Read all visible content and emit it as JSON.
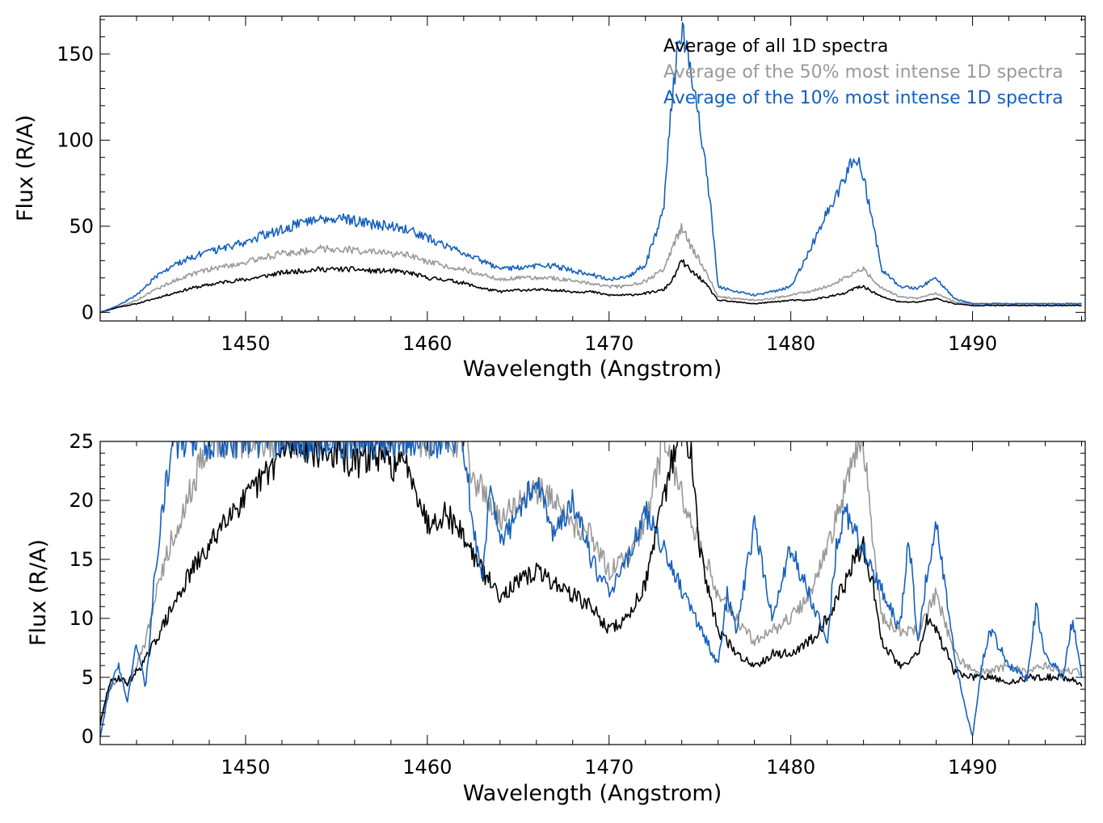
{
  "colors": {
    "all": "#000000",
    "fifty": "#999999",
    "ten": "#1560bd",
    "axis": "#000000"
  },
  "chart_data": [
    {
      "type": "line",
      "xlabel": "Wavelength (Angstrom)",
      "ylabel": "Flux (R/A)",
      "xlim": [
        1442.0,
        1496.2
      ],
      "ylim": [
        -5,
        172
      ],
      "xticks": [
        1450,
        1460,
        1470,
        1480,
        1490
      ],
      "xtick_labels": [
        "1450",
        "1460",
        "1470",
        "1480",
        "1490"
      ],
      "yticks": [
        0,
        50,
        100,
        150
      ],
      "ytick_labels": [
        "0",
        "50",
        "100",
        "150"
      ],
      "grid": false,
      "legend_position": "top-right",
      "legend": [
        "Average of all 1D spectra",
        "Average of the 50% most intense 1D spectra",
        "Average of the 10% most intense 1D spectra"
      ],
      "series": [
        {
          "name": "Average of all 1D spectra",
          "color_key": "all",
          "x": [
            1442.0,
            1443.0,
            1444.0,
            1445.0,
            1446.0,
            1447.0,
            1448.0,
            1449.0,
            1450.0,
            1451.0,
            1452.0,
            1453.0,
            1454.0,
            1455.0,
            1456.0,
            1457.0,
            1458.0,
            1459.0,
            1460.0,
            1461.0,
            1462.0,
            1463.0,
            1464.0,
            1465.0,
            1466.0,
            1467.0,
            1468.0,
            1469.0,
            1470.0,
            1471.0,
            1472.0,
            1473.0,
            1473.5,
            1474.0,
            1474.5,
            1475.0,
            1475.5,
            1476.0,
            1477.0,
            1478.0,
            1479.0,
            1480.0,
            1481.0,
            1482.0,
            1483.0,
            1483.5,
            1484.0,
            1485.0,
            1486.0,
            1487.0,
            1488.0,
            1489.0,
            1490.0,
            1491.0,
            1492.0,
            1493.0,
            1494.0,
            1495.0,
            1496.0
          ],
          "y": [
            0,
            3,
            5,
            8,
            11,
            14,
            16,
            18,
            19,
            21,
            23,
            24,
            25,
            25,
            25,
            24,
            24,
            23,
            20,
            19,
            17,
            14,
            12,
            13,
            13,
            13,
            12,
            12,
            10,
            10,
            11,
            13,
            19,
            30,
            24,
            20,
            14,
            7,
            6,
            5,
            6,
            7,
            7,
            9,
            11,
            14,
            15,
            9,
            6,
            6,
            8,
            5,
            4,
            4,
            4,
            4,
            4,
            4,
            4
          ]
        },
        {
          "name": "Average of the 50% most intense 1D spectra",
          "color_key": "fifty",
          "x": [
            1442.0,
            1443.0,
            1444.0,
            1445.0,
            1446.0,
            1447.0,
            1448.0,
            1449.0,
            1450.0,
            1451.0,
            1452.0,
            1453.0,
            1454.0,
            1455.0,
            1456.0,
            1457.0,
            1458.0,
            1459.0,
            1460.0,
            1461.0,
            1462.0,
            1463.0,
            1464.0,
            1465.0,
            1466.0,
            1467.0,
            1468.0,
            1469.0,
            1470.0,
            1471.0,
            1472.0,
            1473.0,
            1473.5,
            1474.0,
            1474.5,
            1475.0,
            1475.5,
            1476.0,
            1477.0,
            1478.0,
            1479.0,
            1480.0,
            1481.0,
            1482.0,
            1483.0,
            1483.5,
            1484.0,
            1485.0,
            1486.0,
            1487.0,
            1488.0,
            1489.0,
            1490.0,
            1491.0,
            1492.0,
            1493.0,
            1494.0,
            1495.0,
            1496.0
          ],
          "y": [
            0,
            3,
            7,
            13,
            18,
            22,
            25,
            27,
            29,
            32,
            34,
            35,
            37,
            37,
            36,
            35,
            34,
            33,
            29,
            27,
            25,
            22,
            19,
            20,
            20,
            20,
            18,
            17,
            15,
            15,
            18,
            25,
            38,
            50,
            38,
            30,
            20,
            9,
            8,
            7,
            8,
            10,
            12,
            15,
            20,
            23,
            25,
            14,
            9,
            8,
            11,
            6,
            5,
            5,
            5,
            5,
            5,
            5,
            5
          ]
        },
        {
          "name": "Average of the 10% most intense 1D spectra",
          "color_key": "ten",
          "x": [
            1442.0,
            1443.0,
            1444.0,
            1445.0,
            1446.0,
            1447.0,
            1448.0,
            1449.0,
            1450.0,
            1451.0,
            1452.0,
            1453.0,
            1454.0,
            1455.0,
            1456.0,
            1457.0,
            1458.0,
            1459.0,
            1460.0,
            1461.0,
            1462.0,
            1463.0,
            1464.0,
            1465.0,
            1466.0,
            1467.0,
            1468.0,
            1469.0,
            1470.0,
            1471.0,
            1472.0,
            1473.0,
            1473.5,
            1474.0,
            1474.5,
            1475.0,
            1475.5,
            1476.0,
            1477.0,
            1478.0,
            1479.0,
            1480.0,
            1481.0,
            1482.0,
            1483.0,
            1483.5,
            1484.0,
            1485.0,
            1486.0,
            1487.0,
            1488.0,
            1489.0,
            1490.0,
            1491.0,
            1492.0,
            1493.0,
            1494.0,
            1495.0,
            1496.0
          ],
          "y": [
            0,
            4,
            10,
            20,
            27,
            32,
            35,
            38,
            41,
            45,
            48,
            52,
            55,
            55,
            53,
            51,
            50,
            48,
            43,
            39,
            35,
            30,
            25,
            26,
            27,
            27,
            24,
            22,
            19,
            20,
            28,
            58,
            130,
            168,
            140,
            110,
            70,
            15,
            12,
            10,
            12,
            15,
            35,
            58,
            78,
            90,
            80,
            25,
            15,
            14,
            20,
            8,
            5,
            5,
            5,
            5,
            5,
            5,
            5
          ]
        }
      ]
    },
    {
      "type": "line",
      "xlabel": "Wavelength (Angstrom)",
      "ylabel": "Flux (R/A)",
      "xlim": [
        1442.0,
        1496.2
      ],
      "ylim": [
        -0.7,
        25
      ],
      "xticks": [
        1450,
        1460,
        1470,
        1480,
        1490
      ],
      "xtick_labels": [
        "1450",
        "1460",
        "1470",
        "1480",
        "1490"
      ],
      "yticks": [
        0,
        5,
        10,
        15,
        20,
        25
      ],
      "ytick_labels": [
        "0",
        "5",
        "10",
        "15",
        "20",
        "25"
      ],
      "grid": false,
      "series": [
        {
          "name": "Average of all 1D spectra",
          "color_key": "all",
          "x": [
            1442.0,
            1442.5,
            1443.0,
            1443.5,
            1444.0,
            1444.5,
            1445.0,
            1446.0,
            1447.0,
            1448.0,
            1449.0,
            1450.0,
            1451.0,
            1452.0,
            1453.0,
            1454.0,
            1455.0,
            1456.0,
            1457.0,
            1458.0,
            1459.0,
            1460.0,
            1461.0,
            1462.0,
            1463.0,
            1464.0,
            1465.0,
            1466.0,
            1467.0,
            1468.0,
            1469.0,
            1470.0,
            1471.0,
            1472.0,
            1473.0,
            1473.7,
            1474.5,
            1475.0,
            1475.5,
            1476.0,
            1477.0,
            1478.0,
            1479.0,
            1480.0,
            1481.0,
            1482.0,
            1483.0,
            1483.5,
            1484.0,
            1484.5,
            1485.0,
            1486.0,
            1487.0,
            1487.5,
            1488.0,
            1489.0,
            1490.0,
            1491.0,
            1492.0,
            1493.0,
            1494.0,
            1495.0,
            1496.0
          ],
          "y": [
            1,
            4.5,
            5,
            4.5,
            5.5,
            6.5,
            8,
            11,
            14,
            16,
            19,
            20,
            22,
            24,
            25,
            24,
            24,
            23,
            24,
            23,
            23,
            18,
            19,
            17,
            14,
            12,
            13,
            14,
            13,
            12,
            11,
            9,
            10,
            13,
            20,
            25,
            25,
            16,
            12,
            9,
            7,
            6,
            7,
            7,
            8,
            10,
            13,
            15,
            16,
            13,
            8,
            6,
            7,
            10,
            9,
            5.5,
            5,
            5,
            4.5,
            5,
            5,
            5,
            4.5
          ]
        },
        {
          "name": "Average of the 50% most intense 1D spectra",
          "color_key": "fifty",
          "x": [
            1442.0,
            1442.5,
            1443.0,
            1443.5,
            1444.0,
            1444.5,
            1445.0,
            1446.0,
            1447.0,
            1448.0,
            1449.0,
            1450.0,
            1451.0,
            1452.0,
            1462.0,
            1462.5,
            1463.0,
            1464.0,
            1465.0,
            1466.0,
            1467.0,
            1468.0,
            1469.0,
            1470.0,
            1471.0,
            1472.0,
            1473.0,
            1476.0,
            1477.0,
            1478.0,
            1479.0,
            1480.0,
            1481.0,
            1482.0,
            1483.0,
            1483.5,
            1484.0,
            1484.5,
            1485.0,
            1486.0,
            1487.0,
            1488.0,
            1489.0,
            1490.0,
            1491.0,
            1492.0,
            1493.0,
            1494.0,
            1495.0,
            1496.0
          ],
          "y": [
            1,
            4,
            5,
            4.5,
            6,
            8,
            12,
            17,
            21,
            25,
            25,
            25,
            25,
            25,
            25,
            22,
            21,
            18,
            20,
            21,
            20,
            18,
            17,
            14,
            15,
            18,
            25,
            12,
            10,
            8,
            9,
            10,
            12,
            16,
            21,
            24,
            25,
            17,
            10,
            9,
            9,
            12,
            7,
            5.5,
            5.5,
            6,
            5.5,
            6,
            5.5,
            5.5
          ]
        },
        {
          "name": "Average of the 10% most intense 1D spectra",
          "color_key": "ten",
          "x": [
            1442.0,
            1442.5,
            1443.0,
            1443.5,
            1444.0,
            1444.5,
            1445.0,
            1445.5,
            1446.0,
            1447.0,
            1462.0,
            1462.5,
            1463.0,
            1463.5,
            1464.0,
            1465.0,
            1466.0,
            1467.0,
            1468.0,
            1469.0,
            1470.0,
            1471.0,
            1472.0,
            1476.0,
            1476.5,
            1477.0,
            1478.0,
            1479.0,
            1480.0,
            1481.0,
            1482.0,
            1482.5,
            1483.0,
            1486.0,
            1486.5,
            1487.0,
            1487.5,
            1488.0,
            1489.0,
            1489.5,
            1490.0,
            1490.5,
            1491.0,
            1492.0,
            1493.0,
            1493.5,
            1494.0,
            1495.0,
            1495.5,
            1496.0
          ],
          "y": [
            0,
            4,
            6,
            3,
            8,
            4,
            14,
            20,
            25,
            25,
            25,
            18,
            13,
            22,
            16,
            19,
            22,
            17,
            20,
            15,
            12,
            15,
            19,
            6,
            12,
            9,
            18,
            10,
            16,
            12,
            8,
            16,
            19,
            9,
            17,
            8,
            14,
            18,
            7,
            3,
            0,
            6,
            9,
            6,
            5,
            11,
            7,
            5,
            10,
            5
          ]
        }
      ]
    }
  ]
}
